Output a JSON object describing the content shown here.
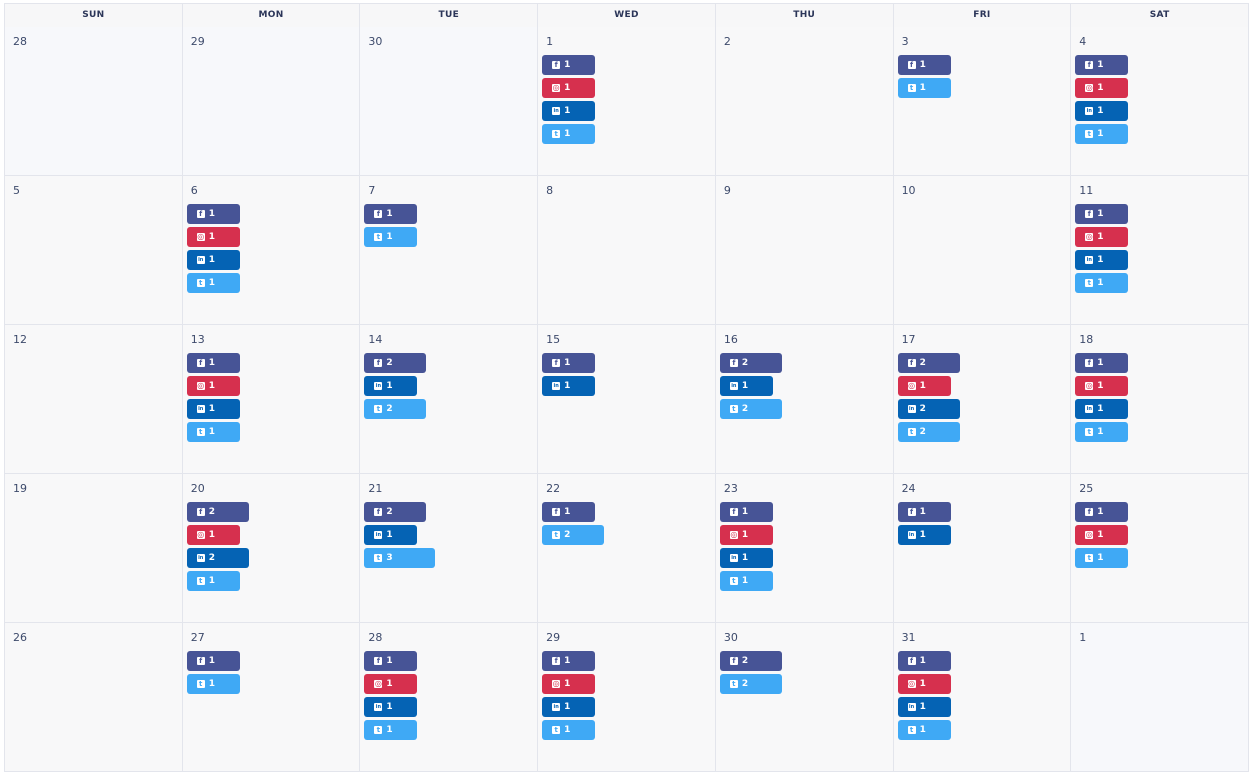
{
  "weekdays": [
    "SUN",
    "MON",
    "TUE",
    "WED",
    "THU",
    "FRI",
    "SAT"
  ],
  "colors": {
    "facebook": "#475496",
    "instagram": "#d6304e",
    "linkedin": "#0563b4",
    "twitter": "#3fa9f5"
  },
  "icons": {
    "facebook": "facebook-icon",
    "instagram": "instagram-icon",
    "linkedin": "linkedin-icon",
    "twitter": "twitter-icon"
  },
  "weeks": [
    [
      {
        "day": "28",
        "out": true,
        "posts": []
      },
      {
        "day": "29",
        "out": true,
        "posts": []
      },
      {
        "day": "30",
        "out": true,
        "posts": []
      },
      {
        "day": "1",
        "posts": [
          [
            "facebook",
            "1"
          ],
          [
            "instagram",
            "1"
          ],
          [
            "linkedin",
            "1"
          ],
          [
            "twitter",
            "1"
          ]
        ]
      },
      {
        "day": "2",
        "posts": []
      },
      {
        "day": "3",
        "posts": [
          [
            "facebook",
            "1"
          ],
          [
            "twitter",
            "1"
          ]
        ]
      },
      {
        "day": "4",
        "posts": [
          [
            "facebook",
            "1"
          ],
          [
            "instagram",
            "1"
          ],
          [
            "linkedin",
            "1"
          ],
          [
            "twitter",
            "1"
          ]
        ]
      }
    ],
    [
      {
        "day": "5",
        "posts": []
      },
      {
        "day": "6",
        "posts": [
          [
            "facebook",
            "1"
          ],
          [
            "instagram",
            "1"
          ],
          [
            "linkedin",
            "1"
          ],
          [
            "twitter",
            "1"
          ]
        ]
      },
      {
        "day": "7",
        "posts": [
          [
            "facebook",
            "1"
          ],
          [
            "twitter",
            "1"
          ]
        ]
      },
      {
        "day": "8",
        "posts": []
      },
      {
        "day": "9",
        "posts": []
      },
      {
        "day": "10",
        "posts": []
      },
      {
        "day": "11",
        "posts": [
          [
            "facebook",
            "1"
          ],
          [
            "instagram",
            "1"
          ],
          [
            "linkedin",
            "1"
          ],
          [
            "twitter",
            "1"
          ]
        ]
      }
    ],
    [
      {
        "day": "12",
        "posts": []
      },
      {
        "day": "13",
        "posts": [
          [
            "facebook",
            "1"
          ],
          [
            "instagram",
            "1"
          ],
          [
            "linkedin",
            "1"
          ],
          [
            "twitter",
            "1"
          ]
        ]
      },
      {
        "day": "14",
        "posts": [
          [
            "facebook",
            "2"
          ],
          [
            "linkedin",
            "1"
          ],
          [
            "twitter",
            "2"
          ]
        ]
      },
      {
        "day": "15",
        "posts": [
          [
            "facebook",
            "1"
          ],
          [
            "linkedin",
            "1"
          ]
        ]
      },
      {
        "day": "16",
        "posts": [
          [
            "facebook",
            "2"
          ],
          [
            "linkedin",
            "1"
          ],
          [
            "twitter",
            "2"
          ]
        ]
      },
      {
        "day": "17",
        "posts": [
          [
            "facebook",
            "2"
          ],
          [
            "instagram",
            "1"
          ],
          [
            "linkedin",
            "2"
          ],
          [
            "twitter",
            "2"
          ]
        ]
      },
      {
        "day": "18",
        "posts": [
          [
            "facebook",
            "1"
          ],
          [
            "instagram",
            "1"
          ],
          [
            "linkedin",
            "1"
          ],
          [
            "twitter",
            "1"
          ]
        ]
      }
    ],
    [
      {
        "day": "19",
        "posts": []
      },
      {
        "day": "20",
        "posts": [
          [
            "facebook",
            "2"
          ],
          [
            "instagram",
            "1"
          ],
          [
            "linkedin",
            "2"
          ],
          [
            "twitter",
            "1"
          ]
        ]
      },
      {
        "day": "21",
        "posts": [
          [
            "facebook",
            "2"
          ],
          [
            "linkedin",
            "1"
          ],
          [
            "twitter",
            "3"
          ]
        ]
      },
      {
        "day": "22",
        "posts": [
          [
            "facebook",
            "1"
          ],
          [
            "twitter",
            "2"
          ]
        ]
      },
      {
        "day": "23",
        "posts": [
          [
            "facebook",
            "1"
          ],
          [
            "instagram",
            "1"
          ],
          [
            "linkedin",
            "1"
          ],
          [
            "twitter",
            "1"
          ]
        ]
      },
      {
        "day": "24",
        "posts": [
          [
            "facebook",
            "1"
          ],
          [
            "linkedin",
            "1"
          ]
        ]
      },
      {
        "day": "25",
        "posts": [
          [
            "facebook",
            "1"
          ],
          [
            "instagram",
            "1"
          ],
          [
            "twitter",
            "1"
          ]
        ]
      }
    ],
    [
      {
        "day": "26",
        "posts": []
      },
      {
        "day": "27",
        "posts": [
          [
            "facebook",
            "1"
          ],
          [
            "twitter",
            "1"
          ]
        ]
      },
      {
        "day": "28",
        "posts": [
          [
            "facebook",
            "1"
          ],
          [
            "instagram",
            "1"
          ],
          [
            "linkedin",
            "1"
          ],
          [
            "twitter",
            "1"
          ]
        ]
      },
      {
        "day": "29",
        "posts": [
          [
            "facebook",
            "1"
          ],
          [
            "instagram",
            "1"
          ],
          [
            "linkedin",
            "1"
          ],
          [
            "twitter",
            "1"
          ]
        ]
      },
      {
        "day": "30",
        "posts": [
          [
            "facebook",
            "2"
          ],
          [
            "twitter",
            "2"
          ]
        ]
      },
      {
        "day": "31",
        "posts": [
          [
            "facebook",
            "1"
          ],
          [
            "instagram",
            "1"
          ],
          [
            "linkedin",
            "1"
          ],
          [
            "twitter",
            "1"
          ]
        ]
      },
      {
        "day": "1",
        "out": true,
        "posts": []
      }
    ]
  ]
}
